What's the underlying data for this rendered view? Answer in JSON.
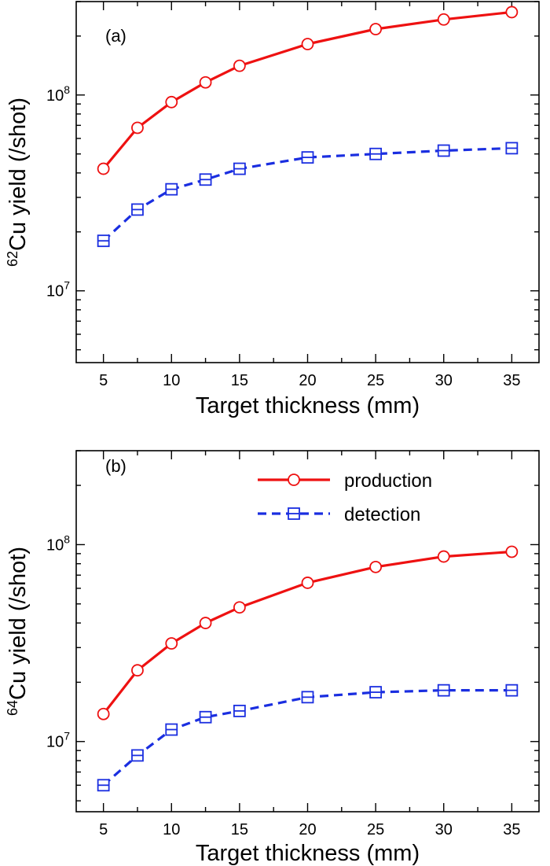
{
  "chart_data": [
    {
      "type": "line",
      "panel_label": "(a)",
      "xlabel": "Target thickness (mm)",
      "ylabel_sup": "62",
      "ylabel_main": "Cu yield (/shot)",
      "xlim": [
        3,
        37
      ],
      "ylim": [
        4300000.0,
        300000000.0
      ],
      "yscale": "log",
      "xticks": [
        5,
        10,
        15,
        20,
        25,
        30,
        35
      ],
      "xtick_labels": [
        "5",
        "10",
        "15",
        "20",
        "25",
        "30",
        "35"
      ],
      "ytick_labels": [
        {
          "value": 10000000.0,
          "base": "10",
          "exp": "7"
        },
        {
          "value": 100000000.0,
          "base": "10",
          "exp": "8"
        }
      ],
      "x": [
        5,
        7.5,
        10,
        12.5,
        15,
        20,
        25,
        30,
        35
      ],
      "series": [
        {
          "name": "production",
          "color": "#ee1111",
          "marker": "circle",
          "dash": "solid",
          "values": [
            42000000.0,
            68000000.0,
            92000000.0,
            116000000.0,
            141000000.0,
            182000000.0,
            217000000.0,
            243000000.0,
            265000000.0
          ]
        },
        {
          "name": "detection",
          "color": "#1a2ee0",
          "marker": "square",
          "dash": "dashed",
          "values": [
            18000000.0,
            26000000.0,
            33000000.0,
            37000000.0,
            42000000.0,
            48000000.0,
            50000000.0,
            52000000.0,
            53500000.0
          ]
        }
      ],
      "show_legend": false
    },
    {
      "type": "line",
      "panel_label": "(b)",
      "xlabel": "Target thickness (mm)",
      "ylabel_sup": "64",
      "ylabel_main": "Cu yield (/shot)",
      "xlim": [
        3,
        37
      ],
      "ylim": [
        4400000.0,
        300000000.0
      ],
      "yscale": "log",
      "xticks": [
        5,
        10,
        15,
        20,
        25,
        30,
        35
      ],
      "xtick_labels": [
        "5",
        "10",
        "15",
        "20",
        "25",
        "30",
        "35"
      ],
      "ytick_labels": [
        {
          "value": 10000000.0,
          "base": "10",
          "exp": "7"
        },
        {
          "value": 100000000.0,
          "base": "10",
          "exp": "8"
        }
      ],
      "x": [
        5,
        7.5,
        10,
        12.5,
        15,
        20,
        25,
        30,
        35
      ],
      "series": [
        {
          "name": "production",
          "color": "#ee1111",
          "marker": "circle",
          "dash": "solid",
          "values": [
            13800000.0,
            23000000.0,
            31500000.0,
            40000000.0,
            48000000.0,
            64000000.0,
            77000000.0,
            87000000.0,
            92000000.0
          ]
        },
        {
          "name": "detection",
          "color": "#1a2ee0",
          "marker": "square",
          "dash": "dashed",
          "values": [
            6000000.0,
            8500000.0,
            11500000.0,
            13300000.0,
            14300000.0,
            16800000.0,
            17800000.0,
            18200000.0,
            18200000.0
          ]
        }
      ],
      "show_legend": true,
      "legend": {
        "placement": "top-right",
        "entries": [
          "production",
          "detection"
        ]
      }
    }
  ]
}
